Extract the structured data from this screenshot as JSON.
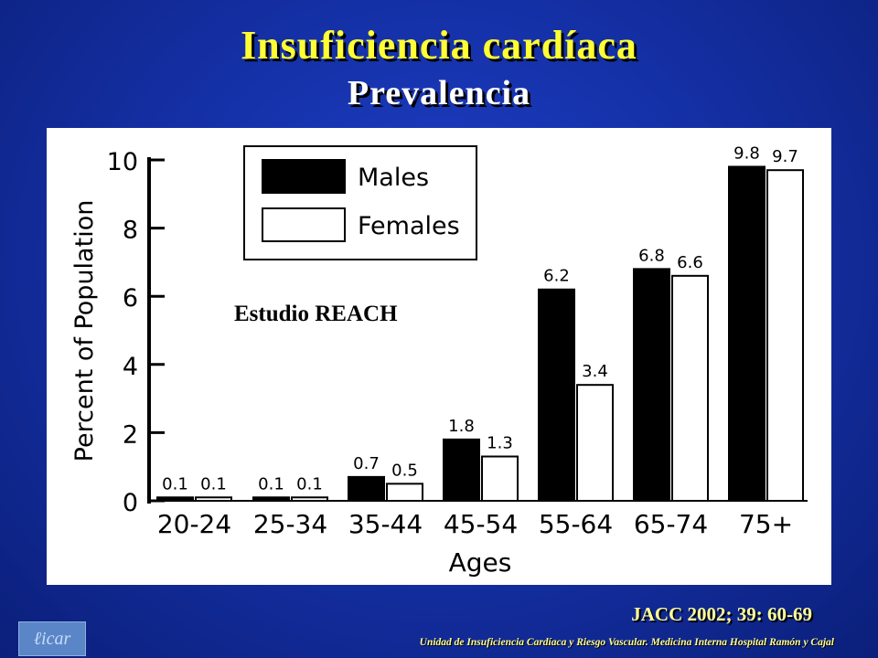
{
  "slide": {
    "title": "Insuficiencia cardíaca",
    "subtitle": "Prevalencia",
    "citation": "JACC 2002; 39: 60-69",
    "footer": "Unidad de Insuficiencia Cardíaca y Riesgo Vascular. Medicina Interna Hospital Ramón y Cajal",
    "logo_text": "ℓicar"
  },
  "colors": {
    "title": "#ffff33",
    "subtitle": "#ffffff",
    "background": "#1531a8",
    "citation": "#ffff99",
    "males": "#000000",
    "females": "#ffffff"
  },
  "chart_data": {
    "type": "bar",
    "title": "",
    "annotation": "Estudio REACH",
    "xlabel": "Ages",
    "ylabel": "Percent of Population",
    "categories": [
      "20-24",
      "25-34",
      "35-44",
      "45-54",
      "55-64",
      "65-74",
      "75+"
    ],
    "series": [
      {
        "name": "Males",
        "color": "#000000",
        "values": [
          0.1,
          0.1,
          0.7,
          1.8,
          6.2,
          6.8,
          9.8
        ],
        "labels": [
          "0.1",
          "0.1",
          "0.7",
          "1.8",
          "6.2",
          "6.8",
          "9.8"
        ]
      },
      {
        "name": "Females",
        "color": "#ffffff",
        "values": [
          0.1,
          0.1,
          0.5,
          1.3,
          3.4,
          6.6,
          9.7
        ],
        "labels": [
          "0.1",
          "0.1",
          "0.5",
          "1.3",
          "3.4",
          "6.6",
          "9.7"
        ]
      }
    ],
    "ylim": [
      0,
      10
    ],
    "yticks": [
      0,
      2,
      4,
      6,
      8,
      10
    ],
    "ytick_labels": [
      "0",
      "2",
      "4",
      "6",
      "8",
      "10"
    ],
    "grid": false,
    "legend": "top-left"
  }
}
